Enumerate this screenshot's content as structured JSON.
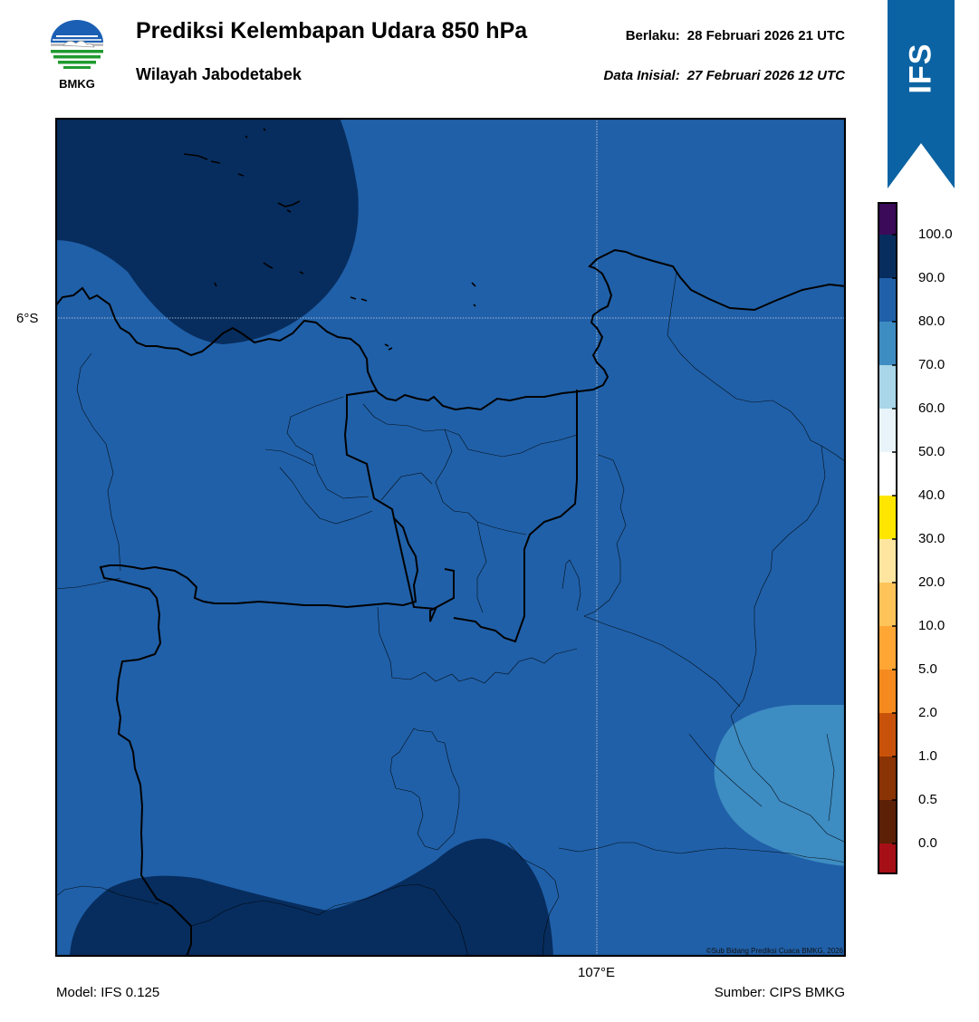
{
  "header": {
    "title": "Prediksi Kelembapan Udara 850 hPa",
    "subtitle": "Wilayah Jabodetabek",
    "valid_label": "Berlaku:",
    "valid_value": "28 Februari 2026 21 UTC",
    "init_label": "Data Inisial:",
    "init_value": "27 Februari 2026 12 UTC"
  },
  "logo": {
    "text": "BMKG",
    "icon": "bmkg-logo"
  },
  "ribbon": {
    "text": "IFS",
    "color": "#0b63a3"
  },
  "map": {
    "lat_label": "6°S",
    "lon_label": "107°E",
    "copyright": "©Sub Bidang Prediksi Cuaca BMKG, 2026",
    "fill_colors": {
      "band_80_90": "#2060a8",
      "band_90_100": "#072d5e",
      "band_70_80": "#3d8cc2"
    }
  },
  "colorbar": {
    "labels": [
      "100.0",
      "90.0",
      "80.0",
      "70.0",
      "60.0",
      "50.0",
      "40.0",
      "30.0",
      "20.0",
      "10.0",
      "5.0",
      "2.0",
      "1.0",
      "0.5",
      "0.0"
    ],
    "colors": [
      "#3b0a58",
      "#072d5e",
      "#2060a8",
      "#3d8cc2",
      "#a9d6e8",
      "#e9f4fa",
      "#ffffff",
      "#ffe600",
      "#ffe6a0",
      "#ffc459",
      "#ffa635",
      "#f58a1e",
      "#c9520a",
      "#8a3304",
      "#5b2006",
      "#a50f15",
      "#e8392d"
    ]
  },
  "footer": {
    "model": "Model: IFS 0.125",
    "source": "Sumber: CIPS BMKG"
  }
}
